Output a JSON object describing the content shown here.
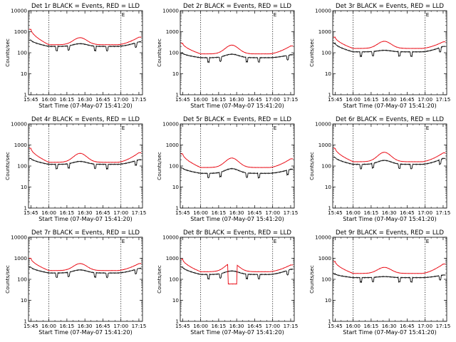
{
  "chart_data": {
    "type": "line",
    "layout": {
      "rows": 3,
      "cols": 3
    },
    "shared": {
      "title_suffix": " BLACK = Events, RED = LLD",
      "xlabel": "Start Time (07-May-07 15:41:20)",
      "ylabel": "Counts/sec",
      "x_ticks": [
        "15:45",
        "16:00",
        "16:15",
        "16:30",
        "16:45",
        "17:00",
        "17:15"
      ],
      "x_tick_minutes": [
        0,
        15,
        30,
        45,
        60,
        75,
        90
      ],
      "x_range_minutes": [
        -2,
        93
      ],
      "y_scale": "log",
      "ylim": [
        1,
        10000
      ],
      "y_ticks": [
        1,
        10,
        100,
        1000,
        10000
      ],
      "y_tick_labels": [
        "1",
        "10",
        "100",
        "1000",
        "10000"
      ],
      "marker_label": "E",
      "marker_minute": 77,
      "vlines_minutes": [
        15,
        75
      ],
      "series_colors": {
        "events": "#000000",
        "lld": "#e8000b"
      },
      "series_names": {
        "events": "Events",
        "lld": "LLD"
      }
    },
    "panels": [
      {
        "title": "Det 1r",
        "lld_base": 240,
        "lld_peak": 520,
        "lld_edge_start": 1300,
        "lld_edge_end": 550,
        "events_base": 200,
        "events_peak": 270,
        "events_edge_start": 400,
        "events_edge_end": 330
      },
      {
        "title": "Det 2r",
        "lld_base": 88,
        "lld_peak": 230,
        "lld_edge_start": 280,
        "lld_edge_end": 210,
        "events_base": 58,
        "events_peak": 85,
        "events_edge_start": 95,
        "events_edge_end": 80
      },
      {
        "title": "Det 3r",
        "lld_base": 160,
        "lld_peak": 350,
        "lld_edge_start": 550,
        "lld_edge_end": 330,
        "events_base": 110,
        "events_peak": 130,
        "events_edge_start": 280,
        "events_edge_end": 200
      },
      {
        "title": "Det 4r",
        "lld_base": 150,
        "lld_peak": 400,
        "lld_edge_start": 700,
        "lld_edge_end": 430,
        "events_base": 120,
        "events_peak": 165,
        "events_edge_start": 230,
        "events_edge_end": 200
      },
      {
        "title": "Det 5r",
        "lld_base": 85,
        "lld_peak": 240,
        "lld_edge_start": 380,
        "lld_edge_end": 220,
        "events_base": 45,
        "events_peak": 75,
        "events_edge_start": 80,
        "events_edge_end": 70
      },
      {
        "title": "Det 6r",
        "lld_base": 160,
        "lld_peak": 450,
        "lld_edge_start": 700,
        "lld_edge_end": 420,
        "events_base": 120,
        "events_peak": 185,
        "events_edge_start": 260,
        "events_edge_end": 230
      },
      {
        "title": "Det 7r",
        "lld_base": 260,
        "lld_peak": 560,
        "lld_edge_start": 1000,
        "lld_edge_end": 560,
        "events_base": 200,
        "events_peak": 280,
        "events_edge_start": 380,
        "events_edge_end": 330
      },
      {
        "title": "Det 8r",
        "lld_base": 230,
        "lld_peak": 600,
        "lld_edge_start": 900,
        "lld_edge_end": 480,
        "events_base": 170,
        "events_peak": 250,
        "events_edge_start": 380,
        "events_edge_end": 300,
        "dip_minutes": [
          38,
          45
        ],
        "dip_value": 60
      },
      {
        "title": "Det 9r",
        "lld_base": 190,
        "lld_peak": 370,
        "lld_edge_start": 700,
        "lld_edge_end": 530,
        "events_base": 120,
        "events_peak": 135,
        "events_edge_start": 180,
        "events_edge_end": 160
      }
    ]
  }
}
